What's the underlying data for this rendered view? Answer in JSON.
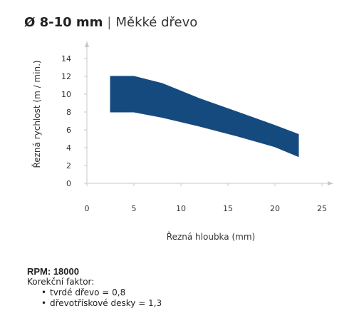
{
  "title": {
    "main": "Ø 8-10 mm",
    "separator": "|",
    "sub": "Měkké dřevo"
  },
  "chart_data": {
    "type": "area",
    "xlabel": "Řezná hloubka (mm)",
    "ylabel": "Řezná rychlost (m / min.)",
    "xlim": [
      0,
      25
    ],
    "ylim": [
      0,
      14
    ],
    "x_ticks": [
      0,
      5,
      10,
      15,
      20,
      25
    ],
    "y_ticks": [
      0,
      2,
      4,
      6,
      8,
      10,
      12,
      14
    ],
    "grid": false,
    "color": "#154a7f",
    "upper": {
      "x": [
        2.5,
        5,
        8,
        12,
        16,
        20,
        22.5
      ],
      "y": [
        12,
        12,
        11.2,
        9.5,
        8.0,
        6.5,
        5.5
      ]
    },
    "lower": {
      "x": [
        2.5,
        5,
        8,
        12,
        16,
        20,
        22.5
      ],
      "y": [
        8,
        8,
        7.4,
        6.4,
        5.3,
        4.1,
        3.0
      ]
    }
  },
  "notes": {
    "rpm": "RPM: 18000",
    "factor_label": "Korekční faktor:",
    "items": [
      "tvrdé dřevo = 0,8",
      "dřevotřískové desky = 1,3"
    ]
  }
}
